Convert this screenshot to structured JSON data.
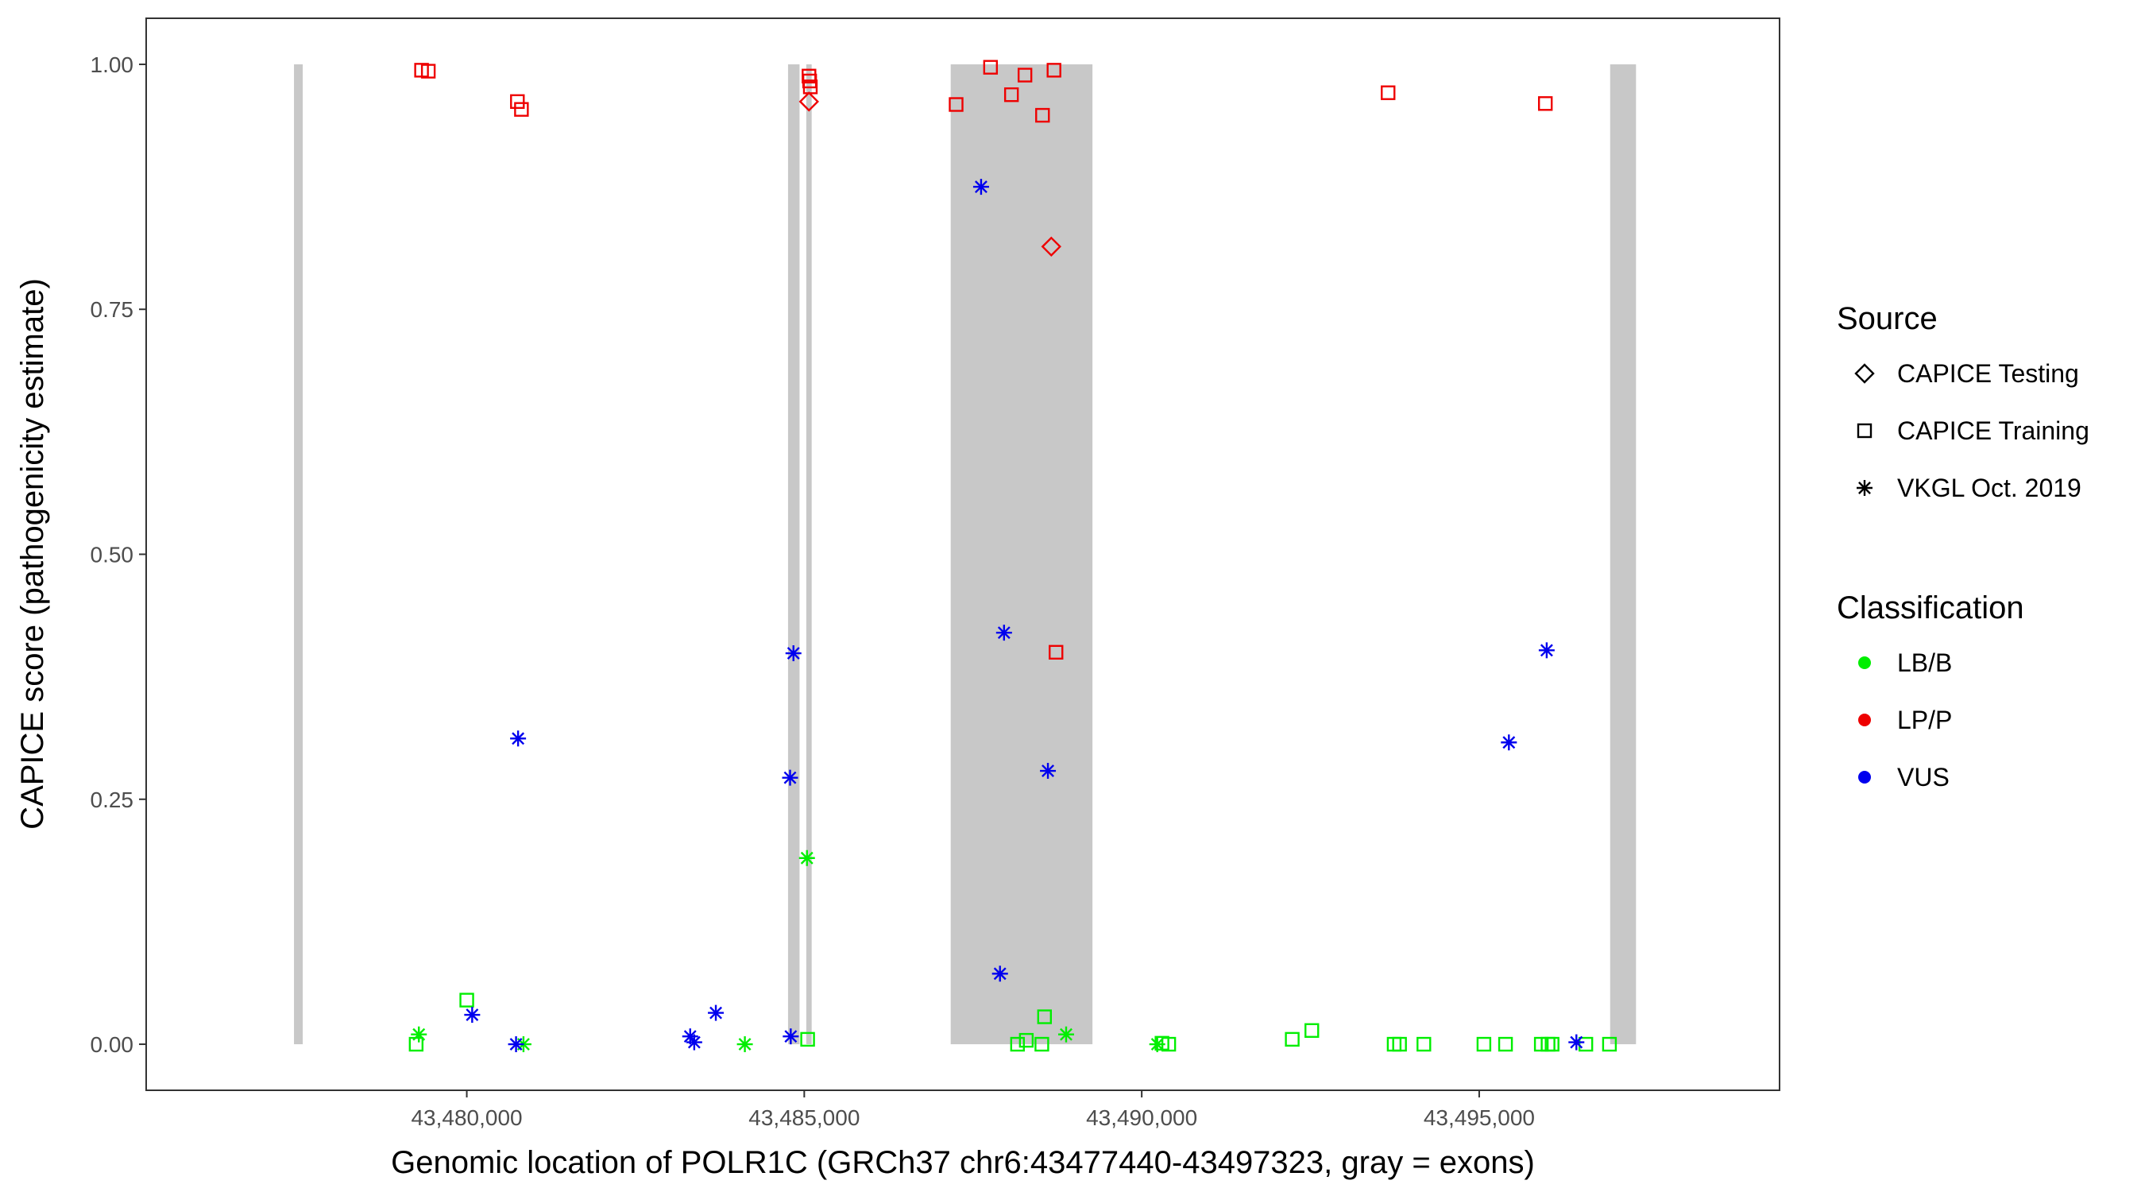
{
  "chart_data": {
    "type": "scatter",
    "title": "",
    "xlabel": "Genomic location of POLR1C (GRCh37 chr6:43477440-43497323, gray = exons)",
    "ylabel": "CAPICE score (pathogenicity estimate)",
    "xlim": [
      43475250,
      43499450
    ],
    "ylim": [
      -0.047,
      1.047
    ],
    "x_ticks": [
      43480000,
      43485000,
      43490000,
      43495000
    ],
    "x_tick_labels": [
      "43,480,000",
      "43,485,000",
      "43,490,000",
      "43,495,000"
    ],
    "y_ticks": [
      0,
      0.25,
      0.5,
      0.75,
      1
    ],
    "y_tick_labels": [
      "0.00",
      "0.25",
      "0.50",
      "0.75",
      "1.00"
    ],
    "grid": false,
    "exons": [
      {
        "start": 43477440,
        "end": 43477570
      },
      {
        "start": 43484760,
        "end": 43484930
      },
      {
        "start": 43485030,
        "end": 43485110
      },
      {
        "start": 43487170,
        "end": 43489270
      },
      {
        "start": 43496940,
        "end": 43497323
      }
    ],
    "exon_color": "#c8c8c8",
    "legend": {
      "placement": "right",
      "source_title": "Source",
      "source_items": [
        {
          "label": "CAPICE Testing",
          "shape": "diamond"
        },
        {
          "label": "CAPICE Training",
          "shape": "square"
        },
        {
          "label": "VKGL Oct. 2019",
          "shape": "asterisk"
        }
      ],
      "class_title": "Classification",
      "class_items": [
        {
          "label": "LB/B",
          "color": "#00ee00"
        },
        {
          "label": "LP/P",
          "color": "#ee0000"
        },
        {
          "label": "VUS",
          "color": "#0000ee"
        }
      ]
    },
    "series": [
      {
        "source": "CAPICE Testing",
        "shape": "diamond",
        "points": [
          {
            "x": 43485070,
            "y": 0.962,
            "class": "LP/P"
          },
          {
            "x": 43488660,
            "y": 0.814,
            "class": "LP/P"
          }
        ]
      },
      {
        "source": "CAPICE Training",
        "shape": "square",
        "points": [
          {
            "x": 43479330,
            "y": 0.994,
            "class": "LP/P"
          },
          {
            "x": 43479430,
            "y": 0.993,
            "class": "LP/P"
          },
          {
            "x": 43480750,
            "y": 0.962,
            "class": "LP/P"
          },
          {
            "x": 43480810,
            "y": 0.954,
            "class": "LP/P"
          },
          {
            "x": 43485070,
            "y": 0.988,
            "class": "LP/P"
          },
          {
            "x": 43485080,
            "y": 0.983,
            "class": "LP/P"
          },
          {
            "x": 43485090,
            "y": 0.977,
            "class": "LP/P"
          },
          {
            "x": 43487250,
            "y": 0.959,
            "class": "LP/P"
          },
          {
            "x": 43487760,
            "y": 0.997,
            "class": "LP/P"
          },
          {
            "x": 43488070,
            "y": 0.969,
            "class": "LP/P"
          },
          {
            "x": 43488270,
            "y": 0.989,
            "class": "LP/P"
          },
          {
            "x": 43488530,
            "y": 0.948,
            "class": "LP/P"
          },
          {
            "x": 43488700,
            "y": 0.994,
            "class": "LP/P"
          },
          {
            "x": 43493650,
            "y": 0.971,
            "class": "LP/P"
          },
          {
            "x": 43495980,
            "y": 0.96,
            "class": "LP/P"
          },
          {
            "x": 43488730,
            "y": 0.4,
            "class": "LP/P"
          },
          {
            "x": 43479250,
            "y": 0.0,
            "class": "LB/B"
          },
          {
            "x": 43480000,
            "y": 0.045,
            "class": "LB/B"
          },
          {
            "x": 43485050,
            "y": 0.005,
            "class": "LB/B"
          },
          {
            "x": 43488160,
            "y": 0.0,
            "class": "LB/B"
          },
          {
            "x": 43488290,
            "y": 0.004,
            "class": "LB/B"
          },
          {
            "x": 43488520,
            "y": 0.0,
            "class": "LB/B"
          },
          {
            "x": 43488560,
            "y": 0.028,
            "class": "LB/B"
          },
          {
            "x": 43490300,
            "y": 0.001,
            "class": "LB/B"
          },
          {
            "x": 43490400,
            "y": 0.0,
            "class": "LB/B"
          },
          {
            "x": 43492230,
            "y": 0.005,
            "class": "LB/B"
          },
          {
            "x": 43492520,
            "y": 0.014,
            "class": "LB/B"
          },
          {
            "x": 43493740,
            "y": 0.0,
            "class": "LB/B"
          },
          {
            "x": 43493820,
            "y": 0.0,
            "class": "LB/B"
          },
          {
            "x": 43494180,
            "y": 0.0,
            "class": "LB/B"
          },
          {
            "x": 43495070,
            "y": 0.0,
            "class": "LB/B"
          },
          {
            "x": 43495390,
            "y": 0.0,
            "class": "LB/B"
          },
          {
            "x": 43495920,
            "y": 0.0,
            "class": "LB/B"
          },
          {
            "x": 43496020,
            "y": 0.0,
            "class": "LB/B"
          },
          {
            "x": 43496080,
            "y": 0.0,
            "class": "LB/B"
          },
          {
            "x": 43496580,
            "y": 0.0,
            "class": "LB/B"
          },
          {
            "x": 43496930,
            "y": 0.0,
            "class": "LB/B"
          }
        ]
      },
      {
        "source": "VKGL Oct. 2019",
        "shape": "asterisk",
        "points": [
          {
            "x": 43479290,
            "y": 0.01,
            "class": "LB/B"
          },
          {
            "x": 43480840,
            "y": 0.0,
            "class": "LB/B"
          },
          {
            "x": 43484120,
            "y": 0.0,
            "class": "LB/B"
          },
          {
            "x": 43485040,
            "y": 0.19,
            "class": "LB/B"
          },
          {
            "x": 43488880,
            "y": 0.01,
            "class": "LB/B"
          },
          {
            "x": 43490230,
            "y": 0.0,
            "class": "LB/B"
          },
          {
            "x": 43480760,
            "y": 0.312,
            "class": "VUS"
          },
          {
            "x": 43480080,
            "y": 0.03,
            "class": "VUS"
          },
          {
            "x": 43480730,
            "y": 0.0,
            "class": "VUS"
          },
          {
            "x": 43483310,
            "y": 0.008,
            "class": "VUS"
          },
          {
            "x": 43483370,
            "y": 0.002,
            "class": "VUS"
          },
          {
            "x": 43483690,
            "y": 0.032,
            "class": "VUS"
          },
          {
            "x": 43484800,
            "y": 0.008,
            "class": "VUS"
          },
          {
            "x": 43484840,
            "y": 0.399,
            "class": "VUS"
          },
          {
            "x": 43484790,
            "y": 0.272,
            "class": "VUS"
          },
          {
            "x": 43487620,
            "y": 0.875,
            "class": "VUS"
          },
          {
            "x": 43487960,
            "y": 0.42,
            "class": "VUS"
          },
          {
            "x": 43487900,
            "y": 0.072,
            "class": "VUS"
          },
          {
            "x": 43488610,
            "y": 0.279,
            "class": "VUS"
          },
          {
            "x": 43495440,
            "y": 0.308,
            "class": "VUS"
          },
          {
            "x": 43496000,
            "y": 0.402,
            "class": "VUS"
          },
          {
            "x": 43496440,
            "y": 0.002,
            "class": "VUS"
          }
        ]
      }
    ]
  }
}
